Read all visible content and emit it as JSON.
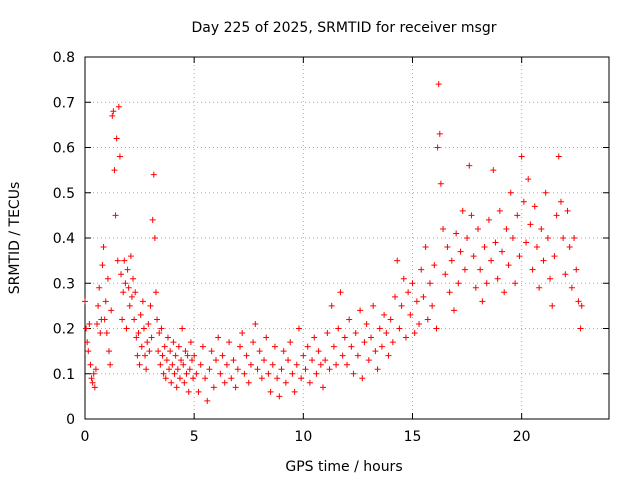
{
  "chart_data": {
    "type": "scatter",
    "title": "Day 225 of 2025, SRMTID for receiver msgr",
    "xlabel": "GPS time / hours",
    "ylabel": "SRMTID / TECUs",
    "xlim": [
      0,
      24
    ],
    "ylim": [
      0,
      0.8
    ],
    "xticks": [
      0,
      5,
      10,
      15,
      20
    ],
    "xtick_labels": [
      "0",
      "5",
      "10",
      "15",
      "20"
    ],
    "yticks": [
      0,
      0.1,
      0.2,
      0.3,
      0.4,
      0.5,
      0.6,
      0.7,
      0.8
    ],
    "ytick_labels": [
      "0",
      "0.1",
      "0.2",
      "0.3",
      "0.4",
      "0.5",
      "0.6",
      "0.7",
      "0.8"
    ],
    "grid": true,
    "marker": "+",
    "color": "#ff0000",
    "series": [
      {
        "name": "SRMTID",
        "points": [
          [
            0.0,
            0.26
          ],
          [
            0.05,
            0.2
          ],
          [
            0.1,
            0.17
          ],
          [
            0.15,
            0.15
          ],
          [
            0.2,
            0.21
          ],
          [
            0.25,
            0.12
          ],
          [
            0.3,
            0.09
          ],
          [
            0.35,
            0.08
          ],
          [
            0.4,
            0.1
          ],
          [
            0.45,
            0.07
          ],
          [
            0.5,
            0.11
          ],
          [
            0.55,
            0.21
          ],
          [
            0.6,
            0.25
          ],
          [
            0.65,
            0.29
          ],
          [
            0.7,
            0.19
          ],
          [
            0.75,
            0.22
          ],
          [
            0.8,
            0.34
          ],
          [
            0.85,
            0.38
          ],
          [
            0.9,
            0.22
          ],
          [
            0.95,
            0.26
          ],
          [
            1.0,
            0.19
          ],
          [
            1.05,
            0.31
          ],
          [
            1.1,
            0.15
          ],
          [
            1.15,
            0.12
          ],
          [
            1.2,
            0.24
          ],
          [
            1.25,
            0.67
          ],
          [
            1.3,
            0.68
          ],
          [
            1.35,
            0.55
          ],
          [
            1.4,
            0.45
          ],
          [
            1.45,
            0.62
          ],
          [
            1.5,
            0.35
          ],
          [
            1.55,
            0.69
          ],
          [
            1.6,
            0.58
          ],
          [
            1.65,
            0.32
          ],
          [
            1.7,
            0.22
          ],
          [
            1.75,
            0.28
          ],
          [
            1.8,
            0.35
          ],
          [
            1.85,
            0.3
          ],
          [
            1.9,
            0.2
          ],
          [
            1.95,
            0.33
          ],
          [
            2.0,
            0.29
          ],
          [
            2.05,
            0.25
          ],
          [
            2.1,
            0.36
          ],
          [
            2.15,
            0.27
          ],
          [
            2.2,
            0.31
          ],
          [
            2.25,
            0.22
          ],
          [
            2.3,
            0.28
          ],
          [
            2.35,
            0.18
          ],
          [
            2.4,
            0.14
          ],
          [
            2.45,
            0.19
          ],
          [
            2.5,
            0.12
          ],
          [
            2.55,
            0.23
          ],
          [
            2.6,
            0.16
          ],
          [
            2.65,
            0.26
          ],
          [
            2.7,
            0.2
          ],
          [
            2.75,
            0.14
          ],
          [
            2.8,
            0.11
          ],
          [
            2.85,
            0.17
          ],
          [
            2.9,
            0.21
          ],
          [
            2.95,
            0.15
          ],
          [
            3.0,
            0.25
          ],
          [
            3.05,
            0.18
          ],
          [
            3.1,
            0.44
          ],
          [
            3.15,
            0.54
          ],
          [
            3.2,
            0.4
          ],
          [
            3.25,
            0.28
          ],
          [
            3.3,
            0.22
          ],
          [
            3.35,
            0.15
          ],
          [
            3.4,
            0.19
          ],
          [
            3.45,
            0.12
          ],
          [
            3.5,
            0.2
          ],
          [
            3.55,
            0.14
          ],
          [
            3.6,
            0.1
          ],
          [
            3.65,
            0.16
          ],
          [
            3.7,
            0.09
          ],
          [
            3.75,
            0.13
          ],
          [
            3.8,
            0.18
          ],
          [
            3.85,
            0.11
          ],
          [
            3.9,
            0.15
          ],
          [
            3.95,
            0.08
          ],
          [
            4.0,
            0.12
          ],
          [
            4.05,
            0.17
          ],
          [
            4.1,
            0.1
          ],
          [
            4.15,
            0.14
          ],
          [
            4.2,
            0.07
          ],
          [
            4.25,
            0.11
          ],
          [
            4.3,
            0.16
          ],
          [
            4.35,
            0.09
          ],
          [
            4.4,
            0.13
          ],
          [
            4.45,
            0.2
          ],
          [
            4.5,
            0.12
          ],
          [
            4.55,
            0.08
          ],
          [
            4.6,
            0.15
          ],
          [
            4.65,
            0.1
          ],
          [
            4.7,
            0.14
          ],
          [
            4.75,
            0.06
          ],
          [
            4.8,
            0.11
          ],
          [
            4.85,
            0.17
          ],
          [
            4.9,
            0.13
          ],
          [
            4.95,
            0.09
          ],
          [
            5.0,
            0.14
          ],
          [
            5.1,
            0.1
          ],
          [
            5.2,
            0.06
          ],
          [
            5.3,
            0.12
          ],
          [
            5.4,
            0.16
          ],
          [
            5.5,
            0.09
          ],
          [
            5.6,
            0.04
          ],
          [
            5.7,
            0.11
          ],
          [
            5.8,
            0.15
          ],
          [
            5.9,
            0.07
          ],
          [
            6.0,
            0.13
          ],
          [
            6.1,
            0.18
          ],
          [
            6.2,
            0.1
          ],
          [
            6.3,
            0.14
          ],
          [
            6.4,
            0.08
          ],
          [
            6.5,
            0.12
          ],
          [
            6.6,
            0.17
          ],
          [
            6.7,
            0.09
          ],
          [
            6.8,
            0.13
          ],
          [
            6.9,
            0.07
          ],
          [
            7.0,
            0.11
          ],
          [
            7.1,
            0.16
          ],
          [
            7.2,
            0.19
          ],
          [
            7.3,
            0.1
          ],
          [
            7.4,
            0.14
          ],
          [
            7.5,
            0.08
          ],
          [
            7.6,
            0.12
          ],
          [
            7.7,
            0.17
          ],
          [
            7.8,
            0.21
          ],
          [
            7.9,
            0.11
          ],
          [
            8.0,
            0.15
          ],
          [
            8.1,
            0.09
          ],
          [
            8.2,
            0.13
          ],
          [
            8.3,
            0.18
          ],
          [
            8.4,
            0.1
          ],
          [
            8.5,
            0.06
          ],
          [
            8.6,
            0.12
          ],
          [
            8.7,
            0.16
          ],
          [
            8.8,
            0.09
          ],
          [
            8.9,
            0.05
          ],
          [
            9.0,
            0.11
          ],
          [
            9.1,
            0.15
          ],
          [
            9.2,
            0.08
          ],
          [
            9.3,
            0.13
          ],
          [
            9.4,
            0.17
          ],
          [
            9.5,
            0.1
          ],
          [
            9.6,
            0.06
          ],
          [
            9.7,
            0.12
          ],
          [
            9.8,
            0.2
          ],
          [
            9.9,
            0.09
          ],
          [
            10.0,
            0.14
          ],
          [
            10.1,
            0.11
          ],
          [
            10.2,
            0.16
          ],
          [
            10.3,
            0.08
          ],
          [
            10.4,
            0.13
          ],
          [
            10.5,
            0.18
          ],
          [
            10.6,
            0.1
          ],
          [
            10.7,
            0.15
          ],
          [
            10.8,
            0.12
          ],
          [
            10.9,
            0.07
          ],
          [
            11.0,
            0.13
          ],
          [
            11.1,
            0.19
          ],
          [
            11.2,
            0.11
          ],
          [
            11.3,
            0.25
          ],
          [
            11.4,
            0.16
          ],
          [
            11.5,
            0.12
          ],
          [
            11.6,
            0.2
          ],
          [
            11.7,
            0.28
          ],
          [
            11.8,
            0.14
          ],
          [
            11.9,
            0.18
          ],
          [
            12.0,
            0.12
          ],
          [
            12.1,
            0.22
          ],
          [
            12.2,
            0.16
          ],
          [
            12.3,
            0.1
          ],
          [
            12.4,
            0.19
          ],
          [
            12.5,
            0.14
          ],
          [
            12.6,
            0.24
          ],
          [
            12.7,
            0.09
          ],
          [
            12.8,
            0.17
          ],
          [
            12.9,
            0.21
          ],
          [
            13.0,
            0.13
          ],
          [
            13.1,
            0.18
          ],
          [
            13.2,
            0.25
          ],
          [
            13.3,
            0.15
          ],
          [
            13.4,
            0.11
          ],
          [
            13.5,
            0.2
          ],
          [
            13.6,
            0.16
          ],
          [
            13.7,
            0.23
          ],
          [
            13.8,
            0.19
          ],
          [
            13.9,
            0.14
          ],
          [
            14.0,
            0.22
          ],
          [
            14.1,
            0.17
          ],
          [
            14.2,
            0.27
          ],
          [
            14.3,
            0.35
          ],
          [
            14.4,
            0.2
          ],
          [
            14.5,
            0.25
          ],
          [
            14.6,
            0.31
          ],
          [
            14.7,
            0.18
          ],
          [
            14.8,
            0.28
          ],
          [
            14.9,
            0.23
          ],
          [
            15.0,
            0.3
          ],
          [
            15.1,
            0.19
          ],
          [
            15.2,
            0.26
          ],
          [
            15.3,
            0.21
          ],
          [
            15.4,
            0.33
          ],
          [
            15.5,
            0.27
          ],
          [
            15.6,
            0.38
          ],
          [
            15.7,
            0.22
          ],
          [
            15.8,
            0.3
          ],
          [
            15.9,
            0.25
          ],
          [
            16.0,
            0.34
          ],
          [
            16.1,
            0.2
          ],
          [
            16.15,
            0.6
          ],
          [
            16.2,
            0.74
          ],
          [
            16.25,
            0.63
          ],
          [
            16.3,
            0.52
          ],
          [
            16.4,
            0.42
          ],
          [
            16.5,
            0.32
          ],
          [
            16.6,
            0.38
          ],
          [
            16.7,
            0.28
          ],
          [
            16.8,
            0.35
          ],
          [
            16.9,
            0.24
          ],
          [
            17.0,
            0.41
          ],
          [
            17.1,
            0.3
          ],
          [
            17.2,
            0.37
          ],
          [
            17.3,
            0.46
          ],
          [
            17.4,
            0.33
          ],
          [
            17.5,
            0.4
          ],
          [
            17.6,
            0.56
          ],
          [
            17.7,
            0.45
          ],
          [
            17.8,
            0.36
          ],
          [
            17.9,
            0.29
          ],
          [
            18.0,
            0.42
          ],
          [
            18.1,
            0.33
          ],
          [
            18.2,
            0.26
          ],
          [
            18.3,
            0.38
          ],
          [
            18.4,
            0.3
          ],
          [
            18.5,
            0.44
          ],
          [
            18.6,
            0.35
          ],
          [
            18.7,
            0.55
          ],
          [
            18.8,
            0.39
          ],
          [
            18.9,
            0.31
          ],
          [
            19.0,
            0.46
          ],
          [
            19.1,
            0.37
          ],
          [
            19.2,
            0.28
          ],
          [
            19.3,
            0.42
          ],
          [
            19.4,
            0.34
          ],
          [
            19.5,
            0.5
          ],
          [
            19.6,
            0.4
          ],
          [
            19.7,
            0.3
          ],
          [
            19.8,
            0.45
          ],
          [
            19.9,
            0.36
          ],
          [
            20.0,
            0.58
          ],
          [
            20.1,
            0.48
          ],
          [
            20.2,
            0.39
          ],
          [
            20.3,
            0.53
          ],
          [
            20.4,
            0.43
          ],
          [
            20.5,
            0.33
          ],
          [
            20.6,
            0.47
          ],
          [
            20.7,
            0.38
          ],
          [
            20.8,
            0.29
          ],
          [
            20.9,
            0.42
          ],
          [
            21.0,
            0.35
          ],
          [
            21.1,
            0.5
          ],
          [
            21.2,
            0.4
          ],
          [
            21.3,
            0.31
          ],
          [
            21.4,
            0.25
          ],
          [
            21.5,
            0.36
          ],
          [
            21.6,
            0.45
          ],
          [
            21.7,
            0.58
          ],
          [
            21.8,
            0.48
          ],
          [
            21.9,
            0.4
          ],
          [
            22.0,
            0.32
          ],
          [
            22.1,
            0.46
          ],
          [
            22.2,
            0.38
          ],
          [
            22.3,
            0.29
          ],
          [
            22.4,
            0.4
          ],
          [
            22.5,
            0.33
          ],
          [
            22.6,
            0.26
          ],
          [
            22.7,
            0.2
          ],
          [
            22.75,
            0.25
          ]
        ]
      }
    ]
  }
}
